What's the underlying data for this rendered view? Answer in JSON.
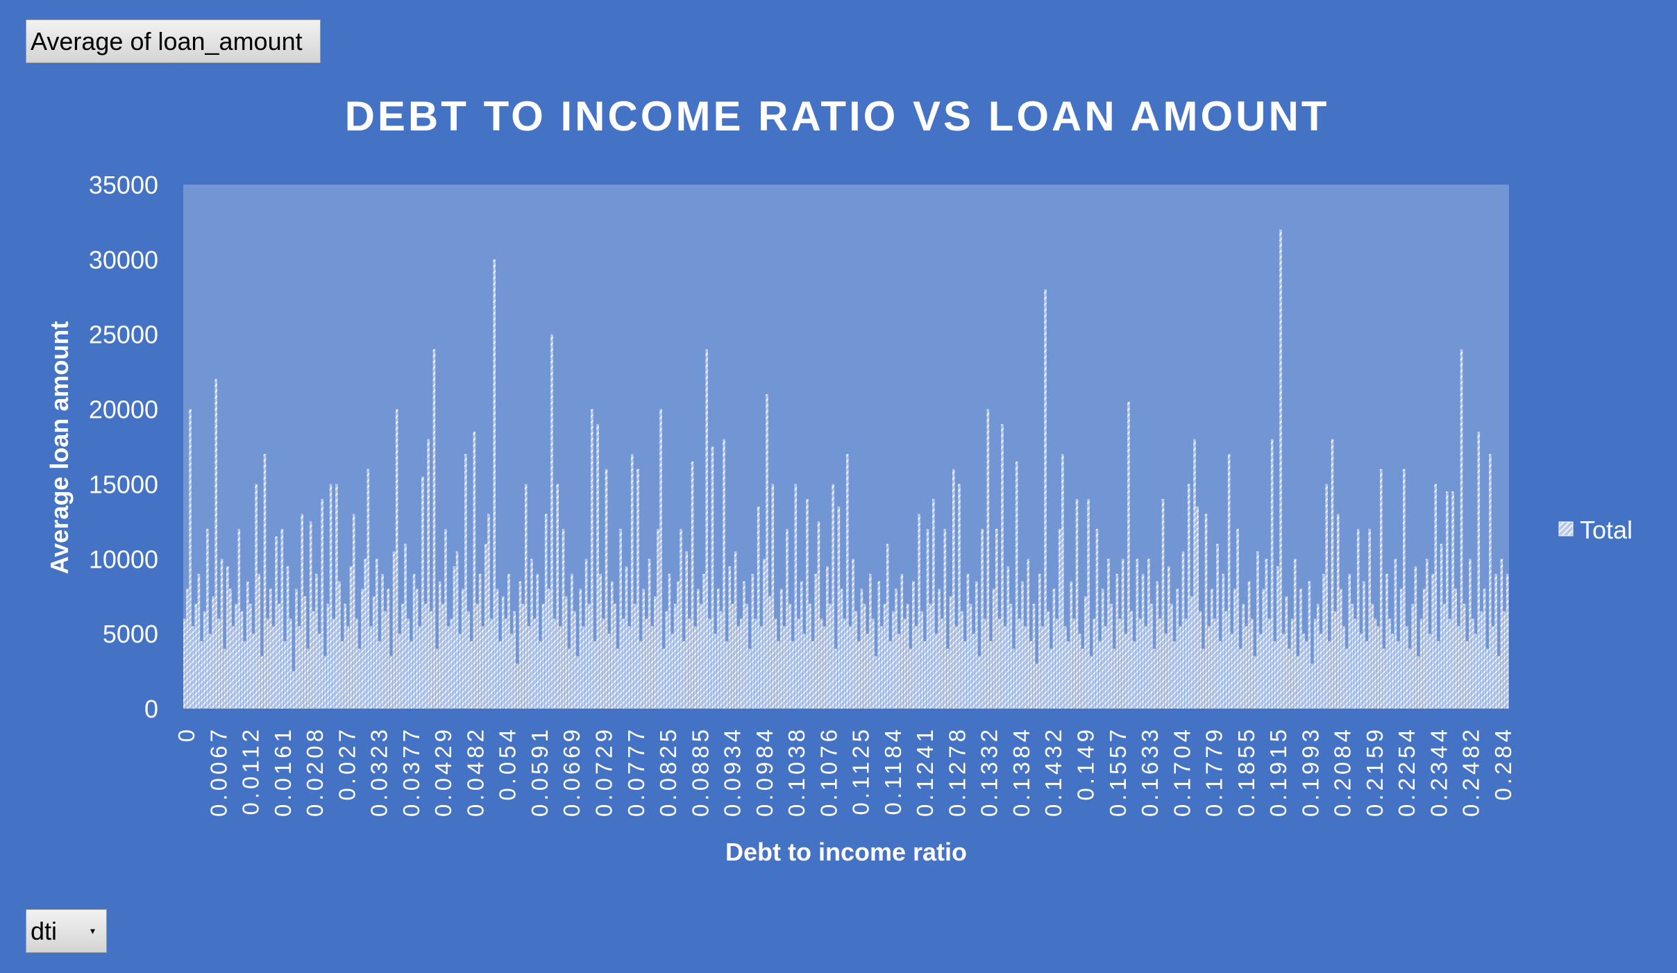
{
  "pivot_fields": {
    "value_field": "Average  of loan_amount",
    "axis_field": "dti"
  },
  "icons": {
    "dropdown": "chevron-down-icon",
    "legend": "hatched-square-icon"
  },
  "colors": {
    "background": "#4472c4",
    "plot_area": "#7295d3",
    "bars": "#dbe3f3",
    "text": "#ffffff"
  },
  "chart_data": {
    "type": "bar",
    "title": "DEBT TO INCOME RATIO VS LOAN AMOUNT",
    "xlabel": "Debt to income ratio",
    "ylabel": "Average loan amount",
    "ylim": [
      0,
      35000
    ],
    "yticks": [
      0,
      5000,
      10000,
      15000,
      20000,
      25000,
      30000,
      35000
    ],
    "xtick_labels": [
      "0",
      "0.0067",
      "0.0112",
      "0.0161",
      "0.0208",
      "0.027",
      "0.0323",
      "0.0377",
      "0.0429",
      "0.0482",
      "0.054",
      "0.0591",
      "0.0669",
      "0.0729",
      "0.0777",
      "0.0825",
      "0.0885",
      "0.0934",
      "0.0984",
      "0.1038",
      "0.1076",
      "0.1125",
      "0.1184",
      "0.1241",
      "0.1278",
      "0.1332",
      "0.1384",
      "0.1432",
      "0.149",
      "0.1557",
      "0.1633",
      "0.1704",
      "0.1779",
      "0.1855",
      "0.1915",
      "0.1993",
      "0.2084",
      "0.2159",
      "0.2254",
      "0.2344",
      "0.2482",
      "0.284"
    ],
    "grid": false,
    "legend": {
      "position": "right",
      "entries": [
        "Total"
      ]
    },
    "series": [
      {
        "name": "Total",
        "values": [
          6000,
          8000,
          20000,
          5500,
          7000,
          9000,
          4500,
          6500,
          12000,
          5000,
          7500,
          22000,
          6000,
          10000,
          4000,
          9500,
          8000,
          5500,
          7000,
          12000,
          6500,
          4500,
          8500,
          7000,
          5000,
          15000,
          9000,
          3500,
          17000,
          6000,
          8000,
          5500,
          11500,
          7000,
          12000,
          4500,
          9500,
          6000,
          2500,
          8000,
          5500,
          13000,
          7500,
          4000,
          12500,
          6500,
          9000,
          5000,
          14000,
          3500,
          7000,
          15000,
          6000,
          15000,
          8500,
          4500,
          7000,
          5500,
          9500,
          13000,
          6000,
          4000,
          8000,
          10000,
          16000,
          5500,
          7500,
          10000,
          4500,
          9000,
          6500,
          8000,
          3500,
          10500,
          20000,
          5000,
          7000,
          11000,
          6000,
          4500,
          9000,
          8000,
          5500,
          15500,
          7000,
          18000,
          6500,
          24000,
          4000,
          8500,
          7000,
          12000,
          5500,
          6000,
          9500,
          10500,
          5000,
          8000,
          17000,
          6500,
          4500,
          18500,
          7000,
          9000,
          5500,
          11000,
          13000,
          6000,
          30000,
          8000,
          4500,
          7500,
          6000,
          9000,
          5000,
          6500,
          3000,
          8500,
          7000,
          15000,
          5500,
          10000,
          6000,
          9000,
          4500,
          7000,
          13000,
          8000,
          25000,
          6000,
          15000,
          5500,
          12000,
          7500,
          4000,
          9000,
          6500,
          3500,
          8000,
          5500,
          10000,
          7000,
          20000,
          4500,
          19000,
          9000,
          6000,
          16000,
          5000,
          8500,
          7000,
          4000,
          12000,
          6000,
          9500,
          5500,
          17000,
          7000,
          16000,
          4500,
          8000,
          6000,
          10000,
          5500,
          7500,
          12000,
          20000,
          4000,
          6500,
          9000,
          5000,
          7000,
          8500,
          12000,
          4500,
          10500,
          6000,
          16500,
          5500,
          8000,
          7000,
          9000,
          24000,
          6000,
          17500,
          5000,
          8000,
          6500,
          18000,
          4500,
          9500,
          7000,
          10500,
          5500,
          6000,
          8500,
          7000,
          4000,
          9000,
          6000,
          13500,
          5500,
          10000,
          21000,
          7500,
          15000,
          6000,
          4500,
          8000,
          5500,
          12000,
          7000,
          4500,
          15000,
          6000,
          8500,
          5000,
          14000,
          7000,
          4500,
          9000,
          12500,
          6000,
          5500,
          9500,
          7000,
          15000,
          4000,
          13500,
          8000,
          6000,
          17000,
          5500,
          10000,
          6500,
          4500,
          8000,
          7000,
          5000,
          9000,
          6000,
          3500,
          8500,
          5500,
          7000,
          11000,
          4500,
          6500,
          8000,
          5000,
          9000,
          6000,
          7000,
          4000,
          8500,
          5500,
          13000,
          6500,
          4500,
          12000,
          7000,
          14000,
          5000,
          8000,
          6000,
          12000,
          4000,
          7500,
          16000,
          5500,
          15000,
          6500,
          4500,
          9000,
          7000,
          5000,
          8500,
          3500,
          12000,
          6000,
          20000,
          4500,
          8000,
          12000,
          6000,
          19000,
          5500,
          9500,
          7000,
          4000,
          16500,
          6000,
          8500,
          5500,
          10000,
          4500,
          7000,
          3000,
          9000,
          5500,
          28000,
          6500,
          4000,
          8000,
          6000,
          12000,
          17000,
          5500,
          4500,
          8500,
          6000,
          14000,
          5000,
          4000,
          7500,
          14000,
          3500,
          6000,
          12000,
          4500,
          8000,
          5500,
          10000,
          7000,
          4000,
          9000,
          6000,
          10000,
          5000,
          20500,
          6500,
          4500,
          10000,
          6000,
          9000,
          5500,
          10000,
          7000,
          4000,
          8500,
          6000,
          14000,
          5000,
          9500,
          7000,
          4500,
          8000,
          5500,
          10500,
          6000,
          15000,
          7500,
          18000,
          13500,
          6500,
          4000,
          13000,
          5500,
          8000,
          6000,
          11000,
          4500,
          9000,
          6500,
          17000,
          5000,
          8000,
          12000,
          4000,
          7000,
          5500,
          8500,
          6000,
          3500,
          10500,
          5000,
          8000,
          10000,
          6000,
          18000,
          4500,
          9500,
          32000,
          5000,
          7500,
          4000,
          6000,
          10000,
          3500,
          8000,
          5000,
          4500,
          8500,
          3000,
          6000,
          7000,
          5000,
          9000,
          15000,
          4500,
          18000,
          6500,
          13000,
          8000,
          5500,
          4000,
          9000,
          7000,
          6000,
          12000,
          5000,
          8500,
          4500,
          12000,
          7000,
          6000,
          5500,
          16000,
          4000,
          9000,
          6000,
          5000,
          10000,
          4500,
          8000,
          16000,
          5500,
          4000,
          7000,
          9500,
          3500,
          6000,
          8000,
          10000,
          5000,
          9000,
          15000,
          4500,
          11000,
          7000,
          14500,
          6000,
          14500,
          8000,
          5500,
          24000,
          7000,
          4500,
          10000,
          6000,
          5000,
          18500,
          6500,
          8000,
          4000,
          17000,
          5500,
          9000,
          3500,
          10000,
          6500,
          9000
        ]
      }
    ]
  }
}
